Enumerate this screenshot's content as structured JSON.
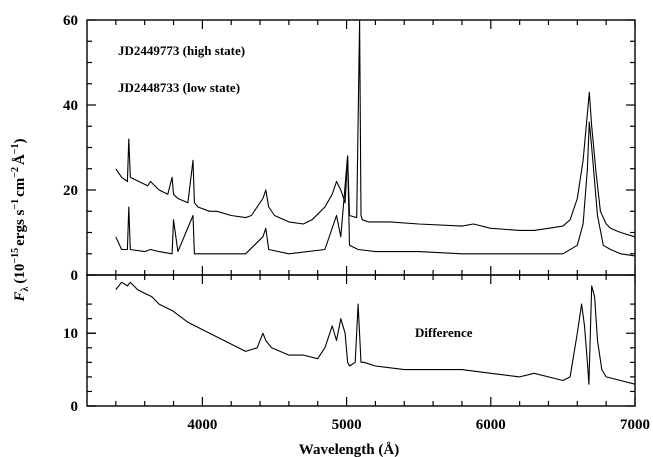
{
  "chart_data": [
    {
      "type": "line",
      "panel": "top",
      "ylim": [
        0,
        60
      ],
      "xlim": [
        3200,
        7000
      ],
      "yticks": [
        0,
        20,
        40,
        60
      ],
      "annotations": [
        "JD2449773 (high state)",
        "JD2448733 (low state)"
      ],
      "series": [
        {
          "name": "JD2449773 (high state)",
          "x": [
            3400,
            3440,
            3480,
            3490,
            3500,
            3560,
            3620,
            3640,
            3700,
            3760,
            3790,
            3800,
            3830,
            3900,
            3935,
            3945,
            3970,
            4050,
            4100,
            4200,
            4300,
            4340,
            4420,
            4440,
            4460,
            4500,
            4600,
            4700,
            4760,
            4850,
            4900,
            4930,
            4960,
            4990,
            5007,
            5020,
            5070,
            5090,
            5100,
            5110,
            5150,
            5300,
            5500,
            5800,
            5880,
            6000,
            6200,
            6300,
            6400,
            6500,
            6550,
            6600,
            6640,
            6670,
            6683,
            6700,
            6730,
            6760,
            6800,
            6830,
            6900,
            7000
          ],
          "y": [
            25,
            23,
            22,
            32,
            23,
            22,
            21,
            22,
            20,
            19,
            23,
            19,
            18,
            17,
            27,
            17,
            16,
            15,
            15,
            14,
            13.5,
            14,
            18,
            20,
            16,
            14,
            12.5,
            12,
            13,
            16,
            19,
            22,
            20,
            17,
            28,
            14,
            13.5,
            65,
            14,
            13,
            12.5,
            12.5,
            12,
            11.5,
            12,
            11,
            10.5,
            10.5,
            11,
            11.5,
            13,
            18,
            27,
            38,
            43,
            35,
            24,
            15,
            12,
            11,
            10,
            9
          ]
        },
        {
          "name": "JD2448733 (low state)",
          "x": [
            3400,
            3440,
            3480,
            3490,
            3500,
            3600,
            3640,
            3700,
            3790,
            3800,
            3830,
            3935,
            3945,
            4000,
            4100,
            4300,
            4420,
            4440,
            4460,
            4600,
            4850,
            4930,
            4960,
            5007,
            5020,
            5080,
            5200,
            5500,
            5800,
            6000,
            6200,
            6400,
            6500,
            6600,
            6640,
            6670,
            6683,
            6700,
            6740,
            6780,
            6830,
            6900,
            7000
          ],
          "y": [
            9,
            6,
            6,
            16,
            6,
            5.5,
            6,
            5.5,
            5,
            13,
            5.5,
            14,
            5,
            5,
            5,
            5,
            9,
            11,
            6,
            5,
            6,
            14,
            9,
            28,
            7,
            6,
            5.5,
            5.5,
            5,
            5,
            5,
            5,
            5,
            7,
            12,
            25,
            36,
            30,
            14,
            7,
            6,
            5,
            4.5
          ]
        }
      ]
    },
    {
      "type": "line",
      "panel": "bottom",
      "ylim": [
        0,
        18
      ],
      "xlim": [
        3200,
        7000
      ],
      "yticks": [
        0,
        10
      ],
      "xticks": [
        4000,
        5000,
        6000,
        7000
      ],
      "annotations": [
        "Difference"
      ],
      "series": [
        {
          "x": [
            3400,
            3440,
            3480,
            3500,
            3550,
            3600,
            3650,
            3700,
            3800,
            3900,
            4000,
            4100,
            4200,
            4300,
            4380,
            4420,
            4440,
            4480,
            4600,
            4700,
            4800,
            4850,
            4900,
            4930,
            4960,
            4990,
            5007,
            5020,
            5060,
            5080,
            5100,
            5120,
            5200,
            5400,
            5600,
            5800,
            6000,
            6200,
            6300,
            6400,
            6500,
            6550,
            6600,
            6630,
            6650,
            6670,
            6680,
            6700,
            6720,
            6740,
            6770,
            6800,
            6900,
            7000
          ],
          "y": [
            16,
            17,
            16.5,
            17,
            16,
            15.5,
            15,
            14,
            13,
            11.5,
            10.5,
            9.5,
            8.5,
            7.5,
            8,
            10,
            9,
            8,
            7,
            7,
            6.5,
            8,
            11,
            9,
            12,
            10,
            6,
            5.5,
            6,
            14,
            6,
            6,
            5.5,
            5,
            5,
            5,
            4.5,
            4,
            4.5,
            4,
            3.5,
            4,
            10,
            14,
            11,
            6,
            3,
            16.5,
            15,
            9,
            5,
            4,
            3.5,
            3
          ]
        }
      ]
    }
  ],
  "axes": {
    "x_title": "Wavelength (Å)",
    "y_title_parts": {
      "symbol": "F",
      "symbol_sub": "λ",
      "open": "(10",
      "exp1": "−15",
      "units1": "ergs s",
      "exp2": "−1",
      "units2": "cm",
      "exp3": "−2",
      "units3": "Å",
      "exp4": "−1",
      "close": ")"
    },
    "top_ytick_labels": [
      "0",
      "20",
      "40",
      "60"
    ],
    "bottom_ytick_labels": [
      "0",
      "10"
    ],
    "xtick_labels": [
      "4000",
      "5000",
      "6000",
      "7000"
    ]
  }
}
